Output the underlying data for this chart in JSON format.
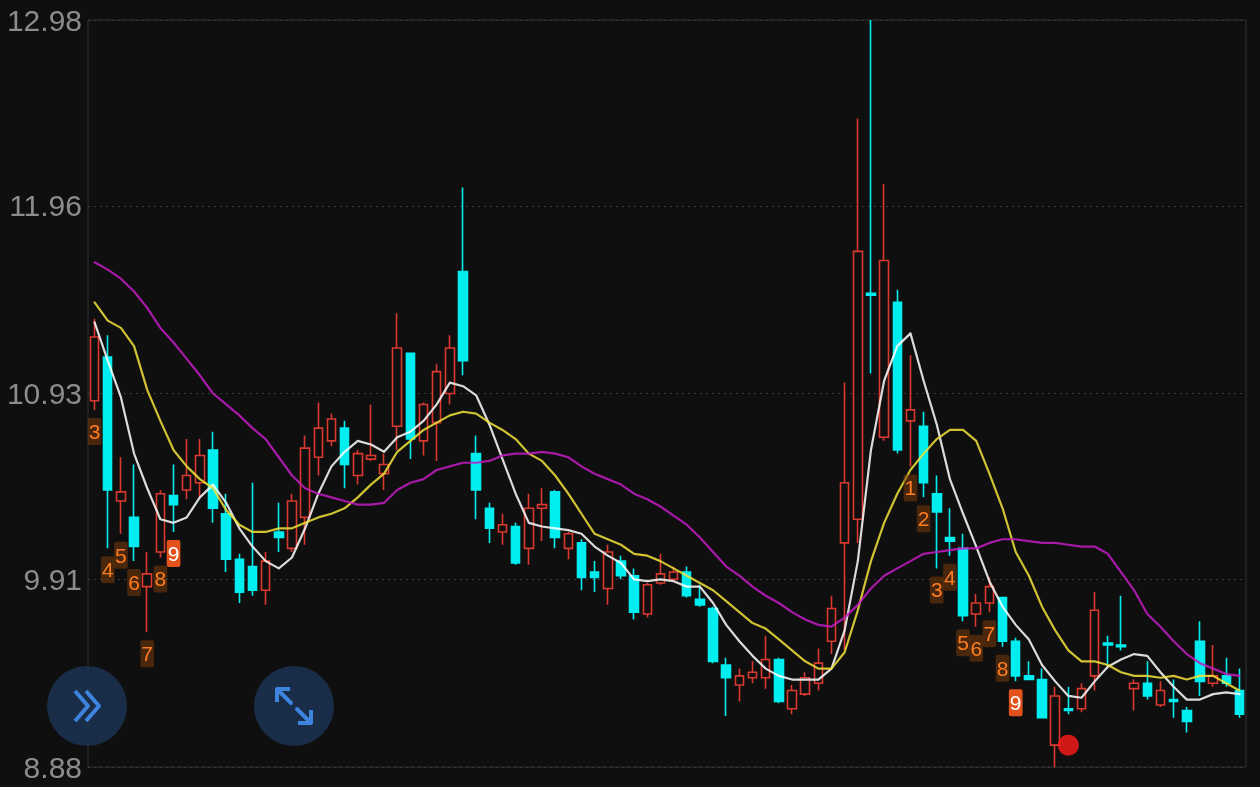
{
  "chart_data": {
    "type": "candlestick",
    "categories": [
      null,
      null,
      null,
      null,
      null,
      null,
      null,
      null,
      null,
      null,
      null,
      null,
      null,
      null,
      null,
      null,
      null,
      null,
      null,
      null,
      null,
      null,
      null,
      null,
      null,
      null,
      null,
      null,
      null,
      null,
      null,
      null,
      null,
      null,
      null,
      null,
      null,
      null,
      null,
      null,
      null,
      null,
      null,
      null,
      null,
      null,
      null,
      null,
      null,
      null,
      null,
      null,
      null,
      null,
      null,
      null,
      null,
      null,
      null,
      null,
      null,
      null,
      null,
      null,
      null,
      null,
      null,
      null,
      null,
      null,
      null,
      null,
      null,
      null,
      null,
      null,
      null,
      null,
      null,
      null,
      null,
      null,
      null,
      null,
      null,
      null,
      null,
      null
    ],
    "ohlc": [
      [
        10.89,
        11.34,
        10.84,
        11.24
      ],
      [
        11.13,
        11.25,
        10.08,
        10.4
      ],
      [
        10.34,
        10.58,
        10.16,
        10.39
      ],
      [
        10.25,
        10.54,
        10.01,
        10.09
      ],
      [
        9.87,
        10.06,
        9.62,
        9.94
      ],
      [
        10.06,
        10.4,
        10.03,
        10.38
      ],
      [
        10.37,
        10.54,
        10.17,
        10.32
      ],
      [
        10.4,
        10.68,
        10.35,
        10.48
      ],
      [
        10.44,
        10.68,
        10.36,
        10.59
      ],
      [
        10.62,
        10.72,
        10.22,
        10.3
      ],
      [
        10.27,
        10.38,
        9.95,
        10.02
      ],
      [
        10.02,
        10.05,
        9.78,
        9.84
      ],
      [
        9.98,
        10.44,
        9.82,
        9.85
      ],
      [
        9.85,
        10.06,
        9.77,
        10.01
      ],
      [
        10.17,
        10.33,
        10.06,
        10.14
      ],
      [
        10.08,
        10.38,
        10.06,
        10.34
      ],
      [
        10.25,
        10.7,
        10.1,
        10.63
      ],
      [
        10.58,
        10.88,
        10.48,
        10.74
      ],
      [
        10.67,
        10.82,
        10.64,
        10.79
      ],
      [
        10.74,
        10.78,
        10.41,
        10.54
      ],
      [
        10.48,
        10.62,
        10.43,
        10.6
      ],
      [
        10.57,
        10.87,
        10.56,
        10.59
      ],
      [
        10.49,
        10.6,
        10.4,
        10.54
      ],
      [
        10.75,
        11.37,
        10.62,
        11.18
      ],
      [
        11.15,
        11.15,
        10.57,
        10.68
      ],
      [
        10.67,
        10.88,
        10.59,
        10.87
      ],
      [
        10.77,
        11.09,
        10.56,
        11.05
      ],
      [
        10.93,
        11.25,
        10.87,
        11.18
      ],
      [
        11.6,
        12.06,
        11.03,
        11.11
      ],
      [
        10.6,
        10.7,
        10.24,
        10.4
      ],
      [
        10.3,
        10.33,
        10.11,
        10.19
      ],
      [
        10.17,
        10.27,
        10.1,
        10.21
      ],
      [
        10.2,
        10.22,
        9.99,
        10.0
      ],
      [
        10.08,
        10.38,
        9.99,
        10.3
      ],
      [
        10.3,
        10.41,
        10.12,
        10.32
      ],
      [
        10.39,
        10.4,
        10.08,
        10.14
      ],
      [
        10.08,
        10.17,
        10.02,
        10.16
      ],
      [
        10.11,
        10.13,
        9.85,
        9.92
      ],
      [
        9.95,
        10.01,
        9.84,
        9.92
      ],
      [
        9.86,
        10.1,
        9.77,
        10.06
      ],
      [
        10.01,
        10.04,
        9.91,
        9.93
      ],
      [
        9.93,
        9.97,
        9.69,
        9.73
      ],
      [
        9.72,
        9.89,
        9.7,
        9.88
      ],
      [
        9.89,
        10.05,
        9.88,
        9.94
      ],
      [
        9.91,
        9.98,
        9.9,
        9.95
      ],
      [
        9.95,
        9.98,
        9.81,
        9.82
      ],
      [
        9.8,
        9.88,
        9.76,
        9.77
      ],
      [
        9.75,
        9.76,
        9.45,
        9.46
      ],
      [
        9.44,
        9.48,
        9.16,
        9.37
      ],
      [
        9.33,
        9.42,
        9.24,
        9.38
      ],
      [
        9.37,
        9.46,
        9.34,
        9.4
      ],
      [
        9.37,
        9.6,
        9.31,
        9.47
      ],
      [
        9.47,
        9.48,
        9.23,
        9.24
      ],
      [
        9.2,
        9.33,
        9.17,
        9.3
      ],
      [
        9.28,
        9.4,
        9.27,
        9.37
      ],
      [
        9.34,
        9.53,
        9.3,
        9.45
      ],
      [
        9.57,
        9.82,
        9.5,
        9.75
      ],
      [
        10.11,
        10.99,
        9.52,
        10.44
      ],
      [
        10.24,
        12.44,
        10.11,
        11.71
      ],
      [
        11.48,
        12.98,
        11.04,
        11.47
      ],
      [
        10.69,
        12.08,
        10.67,
        11.66
      ],
      [
        11.43,
        11.5,
        10.6,
        10.62
      ],
      [
        10.78,
        11.14,
        10.53,
        10.84
      ],
      [
        10.75,
        10.83,
        10.36,
        10.44
      ],
      [
        10.38,
        10.48,
        9.97,
        10.28
      ],
      [
        10.14,
        10.3,
        10.04,
        10.12
      ],
      [
        10.08,
        10.16,
        9.68,
        9.71
      ],
      [
        9.72,
        9.83,
        9.65,
        9.78
      ],
      [
        9.78,
        9.92,
        9.73,
        9.87
      ],
      [
        9.81,
        9.81,
        9.54,
        9.57
      ],
      [
        9.57,
        9.59,
        9.35,
        9.38
      ],
      [
        9.38,
        9.46,
        9.36,
        9.36
      ],
      [
        9.36,
        9.42,
        9.15,
        9.15
      ],
      [
        9.0,
        9.32,
        8.88,
        9.27
      ],
      [
        9.2,
        9.32,
        9.17,
        9.19
      ],
      [
        9.2,
        9.34,
        9.18,
        9.31
      ],
      [
        9.38,
        9.84,
        9.3,
        9.74
      ],
      [
        9.56,
        9.6,
        9.43,
        9.55
      ],
      [
        9.55,
        9.82,
        9.52,
        9.54
      ],
      [
        9.31,
        9.36,
        9.19,
        9.34
      ],
      [
        9.34,
        9.46,
        9.25,
        9.27
      ],
      [
        9.22,
        9.35,
        9.21,
        9.3
      ],
      [
        9.25,
        9.36,
        9.15,
        9.24
      ],
      [
        9.19,
        9.21,
        9.07,
        9.13
      ],
      [
        9.57,
        9.68,
        9.27,
        9.35
      ],
      [
        9.34,
        9.55,
        9.32,
        9.38
      ],
      [
        9.38,
        9.48,
        9.32,
        9.34
      ],
      [
        9.3,
        9.42,
        9.15,
        9.17
      ]
    ],
    "colors": [
      "#d93a2f",
      "#00eef0",
      "#d93a2f",
      "#00eef0",
      "#d93a2f",
      "#d93a2f",
      "#00eef0",
      "#d93a2f",
      "#d93a2f",
      "#00eef0",
      "#00eef0",
      "#00eef0",
      "#00eef0",
      "#d93a2f",
      "#00eef0",
      "#d93a2f",
      "#d93a2f",
      "#d93a2f",
      "#d93a2f",
      "#00eef0",
      "#d93a2f",
      "#d93a2f",
      "#d93a2f",
      "#d93a2f",
      "#00eef0",
      "#d93a2f",
      "#d93a2f",
      "#d93a2f",
      "#00eef0",
      "#00eef0",
      "#00eef0",
      "#d93a2f",
      "#00eef0",
      "#d93a2f",
      "#d93a2f",
      "#00eef0",
      "#d93a2f",
      "#00eef0",
      "#00eef0",
      "#d93a2f",
      "#00eef0",
      "#00eef0",
      "#d93a2f",
      "#d93a2f",
      "#d93a2f",
      "#00eef0",
      "#00eef0",
      "#00eef0",
      "#00eef0",
      "#d93a2f",
      "#d93a2f",
      "#d93a2f",
      "#00eef0",
      "#d93a2f",
      "#d93a2f",
      "#d93a2f",
      "#d93a2f",
      "#d93a2f",
      "#d93a2f",
      "#00eef0",
      "#d93a2f",
      "#00eef0",
      "#d93a2f",
      "#00eef0",
      "#00eef0",
      "#00eef0",
      "#00eef0",
      "#d93a2f",
      "#d93a2f",
      "#00eef0",
      "#00eef0",
      "#00eef0",
      "#00eef0",
      "#d93a2f",
      "#00eef0",
      "#d93a2f",
      "#d93a2f",
      "#00eef0",
      "#00eef0",
      "#d93a2f",
      "#00eef0",
      "#d93a2f",
      "#00eef0",
      "#00eef0",
      "#00eef0",
      "#d93a2f",
      "#00eef0",
      "#00eef0"
    ],
    "value_labels": [
      "3",
      "4",
      "5",
      "6",
      "7",
      "8",
      "9",
      null,
      null,
      null,
      null,
      null,
      null,
      null,
      null,
      null,
      null,
      null,
      null,
      null,
      null,
      null,
      null,
      null,
      null,
      null,
      null,
      null,
      null,
      null,
      null,
      null,
      null,
      null,
      null,
      null,
      null,
      null,
      null,
      null,
      null,
      null,
      null,
      null,
      null,
      null,
      null,
      null,
      null,
      null,
      null,
      null,
      null,
      null,
      null,
      null,
      null,
      null,
      null,
      null,
      null,
      null,
      "1",
      "2",
      "3",
      "4",
      "5",
      "6",
      "7",
      "8",
      "9",
      null,
      null,
      null,
      null,
      null,
      null,
      null,
      null,
      null,
      null,
      null,
      null,
      null,
      null,
      null,
      null,
      null
    ],
    "series": [
      {
        "type": "line",
        "color": "#ffffff",
        "values": [
          11.32,
          11.11,
          10.91,
          10.6,
          10.41,
          10.24,
          10.22,
          10.25,
          10.36,
          10.43,
          10.33,
          10.19,
          10.09,
          10.01,
          9.97,
          10.03,
          10.19,
          10.38,
          10.53,
          10.61,
          10.67,
          10.65,
          10.61,
          10.69,
          10.72,
          10.78,
          10.87,
          10.99,
          10.97,
          10.92,
          10.76,
          10.57,
          10.38,
          10.22,
          10.2,
          10.19,
          10.18,
          10.16,
          10.09,
          10.04,
          10.0,
          9.91,
          9.9,
          9.91,
          9.9,
          9.87,
          9.87,
          9.78,
          9.66,
          9.57,
          9.49,
          9.42,
          9.38,
          9.36,
          9.36,
          9.36,
          9.42,
          9.63,
          10.01,
          10.62,
          11.0,
          11.19,
          11.26,
          11.0,
          10.76,
          10.46,
          10.27,
          10.09,
          9.9,
          9.76,
          9.66,
          9.58,
          9.44,
          9.35,
          9.27,
          9.26,
          9.35,
          9.43,
          9.47,
          9.5,
          9.49,
          9.4,
          9.32,
          9.25,
          9.25,
          9.28,
          9.29,
          9.28
        ]
      },
      {
        "type": "line",
        "color": "#f2e23a",
        "values": [
          11.43,
          11.33,
          11.29,
          11.19,
          10.95,
          10.78,
          10.62,
          10.53,
          10.46,
          10.41,
          10.29,
          10.21,
          10.17,
          10.17,
          10.19,
          10.19,
          10.22,
          10.25,
          10.27,
          10.3,
          10.36,
          10.43,
          10.49,
          10.61,
          10.67,
          10.73,
          10.77,
          10.81,
          10.83,
          10.82,
          10.77,
          10.73,
          10.68,
          10.6,
          10.56,
          10.48,
          10.38,
          10.27,
          10.16,
          10.13,
          10.1,
          10.05,
          10.04,
          10.01,
          9.97,
          9.93,
          9.89,
          9.85,
          9.79,
          9.73,
          9.67,
          9.64,
          9.58,
          9.52,
          9.46,
          9.42,
          9.42,
          9.51,
          9.74,
          10.01,
          10.22,
          10.38,
          10.51,
          10.6,
          10.68,
          10.73,
          10.73,
          10.67,
          10.49,
          10.3,
          10.06,
          9.93,
          9.76,
          9.63,
          9.52,
          9.46,
          9.46,
          9.44,
          9.4,
          9.38,
          9.38,
          9.37,
          9.38,
          9.36,
          9.38,
          9.38,
          9.34,
          9.3
        ]
      },
      {
        "type": "line",
        "color": "#c21cc2",
        "values": [
          11.65,
          11.61,
          11.56,
          11.49,
          11.4,
          11.29,
          11.21,
          11.12,
          11.03,
          10.93,
          10.87,
          10.81,
          10.74,
          10.68,
          10.58,
          10.48,
          10.41,
          10.38,
          10.36,
          10.34,
          10.32,
          10.32,
          10.33,
          10.4,
          10.44,
          10.46,
          10.51,
          10.53,
          10.55,
          10.55,
          10.56,
          10.59,
          10.6,
          10.6,
          10.61,
          10.6,
          10.58,
          10.53,
          10.49,
          10.46,
          10.43,
          10.38,
          10.35,
          10.31,
          10.26,
          10.21,
          10.14,
          10.06,
          9.98,
          9.93,
          9.87,
          9.82,
          9.78,
          9.73,
          9.69,
          9.66,
          9.65,
          9.7,
          9.77,
          9.86,
          9.93,
          9.97,
          10.01,
          10.05,
          10.06,
          10.07,
          10.08,
          10.08,
          10.11,
          10.13,
          10.13,
          10.12,
          10.11,
          10.11,
          10.1,
          10.09,
          10.09,
          10.05,
          9.95,
          9.85,
          9.72,
          9.65,
          9.57,
          9.5,
          9.45,
          9.42,
          9.39,
          9.38
        ]
      },
      {
        "type": "scatter",
        "color": "#ff1c1c",
        "marker": "circle",
        "values": [
          null,
          null,
          null,
          null,
          null,
          null,
          null,
          null,
          null,
          null,
          null,
          null,
          null,
          null,
          null,
          null,
          null,
          null,
          null,
          null,
          null,
          null,
          null,
          null,
          null,
          null,
          null,
          null,
          null,
          null,
          null,
          null,
          null,
          null,
          null,
          null,
          null,
          null,
          null,
          null,
          null,
          null,
          null,
          null,
          null,
          null,
          null,
          null,
          null,
          null,
          null,
          null,
          null,
          null,
          null,
          null,
          null,
          null,
          null,
          null,
          null,
          null,
          null,
          null,
          null,
          null,
          null,
          null,
          null,
          null,
          null,
          null,
          null,
          null,
          9.0,
          null,
          null,
          null,
          null,
          null,
          null,
          null,
          null,
          null,
          null,
          null,
          null,
          null
        ]
      }
    ],
    "ylim": [
      8.88,
      12.98
    ],
    "yticks": [
      8.88,
      9.91,
      10.93,
      11.96,
      12.98
    ],
    "grid": "y",
    "tick_labels": "y",
    "marker": "none",
    "line_style": "solid"
  }
}
